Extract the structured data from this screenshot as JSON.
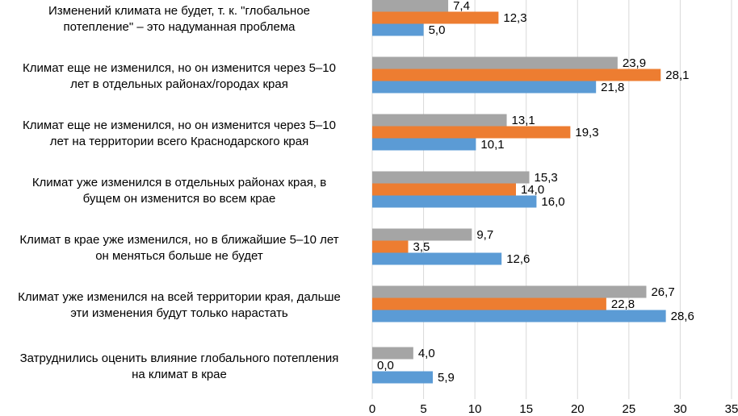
{
  "chart_data": {
    "type": "bar",
    "orientation": "horizontal",
    "title": "",
    "xlabel": "",
    "ylabel": "",
    "xlim": [
      0,
      35
    ],
    "x_ticks": [
      0,
      5,
      10,
      15,
      20,
      25,
      30,
      35
    ],
    "grid": true,
    "legend": "none",
    "categories": [
      [
        "Изменений климата не будет, т. к. \"глобальное",
        "потепление\" – это надуманная проблема"
      ],
      [
        "Климат еще не изменился, но он изменится через 5–10",
        "лет в отдельных районах/городах края"
      ],
      [
        "Климат еще не изменился, но он изменится через 5–10",
        "лет на территории всего Краснодарского края"
      ],
      [
        "Климат уже изменился в отдельных районах края, в",
        "бущем он изменится во всем крае"
      ],
      [
        "Климат в крае уже изменился, но в ближайшие 5–10 лет",
        "он меняться больше не будет"
      ],
      [
        "Климат уже изменился на всей территории края, дальше",
        "эти изменения будут только нарастать"
      ],
      [
        "Затруднились оценить влияние глобального потепления",
        "на климат в крае"
      ]
    ],
    "series": [
      {
        "name": "series-gray",
        "color": "#a5a5a5",
        "values": [
          7.4,
          23.9,
          13.1,
          15.3,
          9.7,
          26.7,
          4.0
        ],
        "labels": [
          "7,4",
          "23,9",
          "13,1",
          "15,3",
          "9,7",
          "26,7",
          "4,0"
        ]
      },
      {
        "name": "series-orange",
        "color": "#ed7d31",
        "values": [
          12.3,
          28.1,
          19.3,
          14.0,
          3.5,
          22.8,
          0.0
        ],
        "labels": [
          "12,3",
          "28,1",
          "19,3",
          "14,0",
          "3,5",
          "22,8",
          "0,0"
        ]
      },
      {
        "name": "series-blue",
        "color": "#5b9bd5",
        "values": [
          5.0,
          21.8,
          10.1,
          16.0,
          12.6,
          28.6,
          5.9
        ],
        "labels": [
          "5,0",
          "21,8",
          "10,1",
          "16,0",
          "12,6",
          "28,6",
          "5,9"
        ]
      }
    ]
  }
}
